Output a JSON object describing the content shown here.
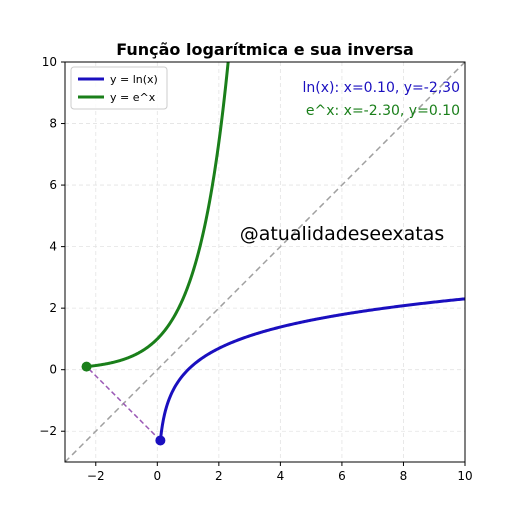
{
  "chart_data": {
    "type": "line",
    "title": "Função logarítmica e sua inversa",
    "xlabel": "",
    "ylabel": "",
    "xlim": [
      -3,
      10
    ],
    "ylim": [
      -3,
      10
    ],
    "x_ticks": [
      -2,
      0,
      2,
      4,
      6,
      8,
      10
    ],
    "y_ticks": [
      -2,
      0,
      2,
      4,
      6,
      8,
      10
    ],
    "grid": true,
    "legend_position": "top-left",
    "series": [
      {
        "name": "y = ln(x)",
        "color": "#1a0fbf",
        "function": "ln",
        "x_range": [
          0.1,
          10
        ],
        "marker_point": {
          "x": 0.1,
          "y": -2.3
        }
      },
      {
        "name": "y = e^x",
        "color": "#1a7f1a",
        "function": "exp",
        "x_range": [
          -2.3,
          2.303
        ],
        "marker_point": {
          "x": -2.3,
          "y": 0.1
        }
      }
    ],
    "reference_line": {
      "label": "",
      "equation": "y = x",
      "color": "#a0a0a0",
      "style": "dashed"
    },
    "connector": {
      "from": {
        "x": 0.1,
        "y": -2.3
      },
      "to": {
        "x": -2.3,
        "y": 0.1
      },
      "color": "#9b59b6",
      "style": "dashed"
    },
    "annotations": [
      {
        "text": "ln(x): x=0.10, y=-2,30",
        "color": "#1a0fbf"
      },
      {
        "text": "e^x: x=-2.30, y=0.10",
        "color": "#1a7f1a"
      }
    ],
    "watermark": "@atualidadeseexatas"
  }
}
